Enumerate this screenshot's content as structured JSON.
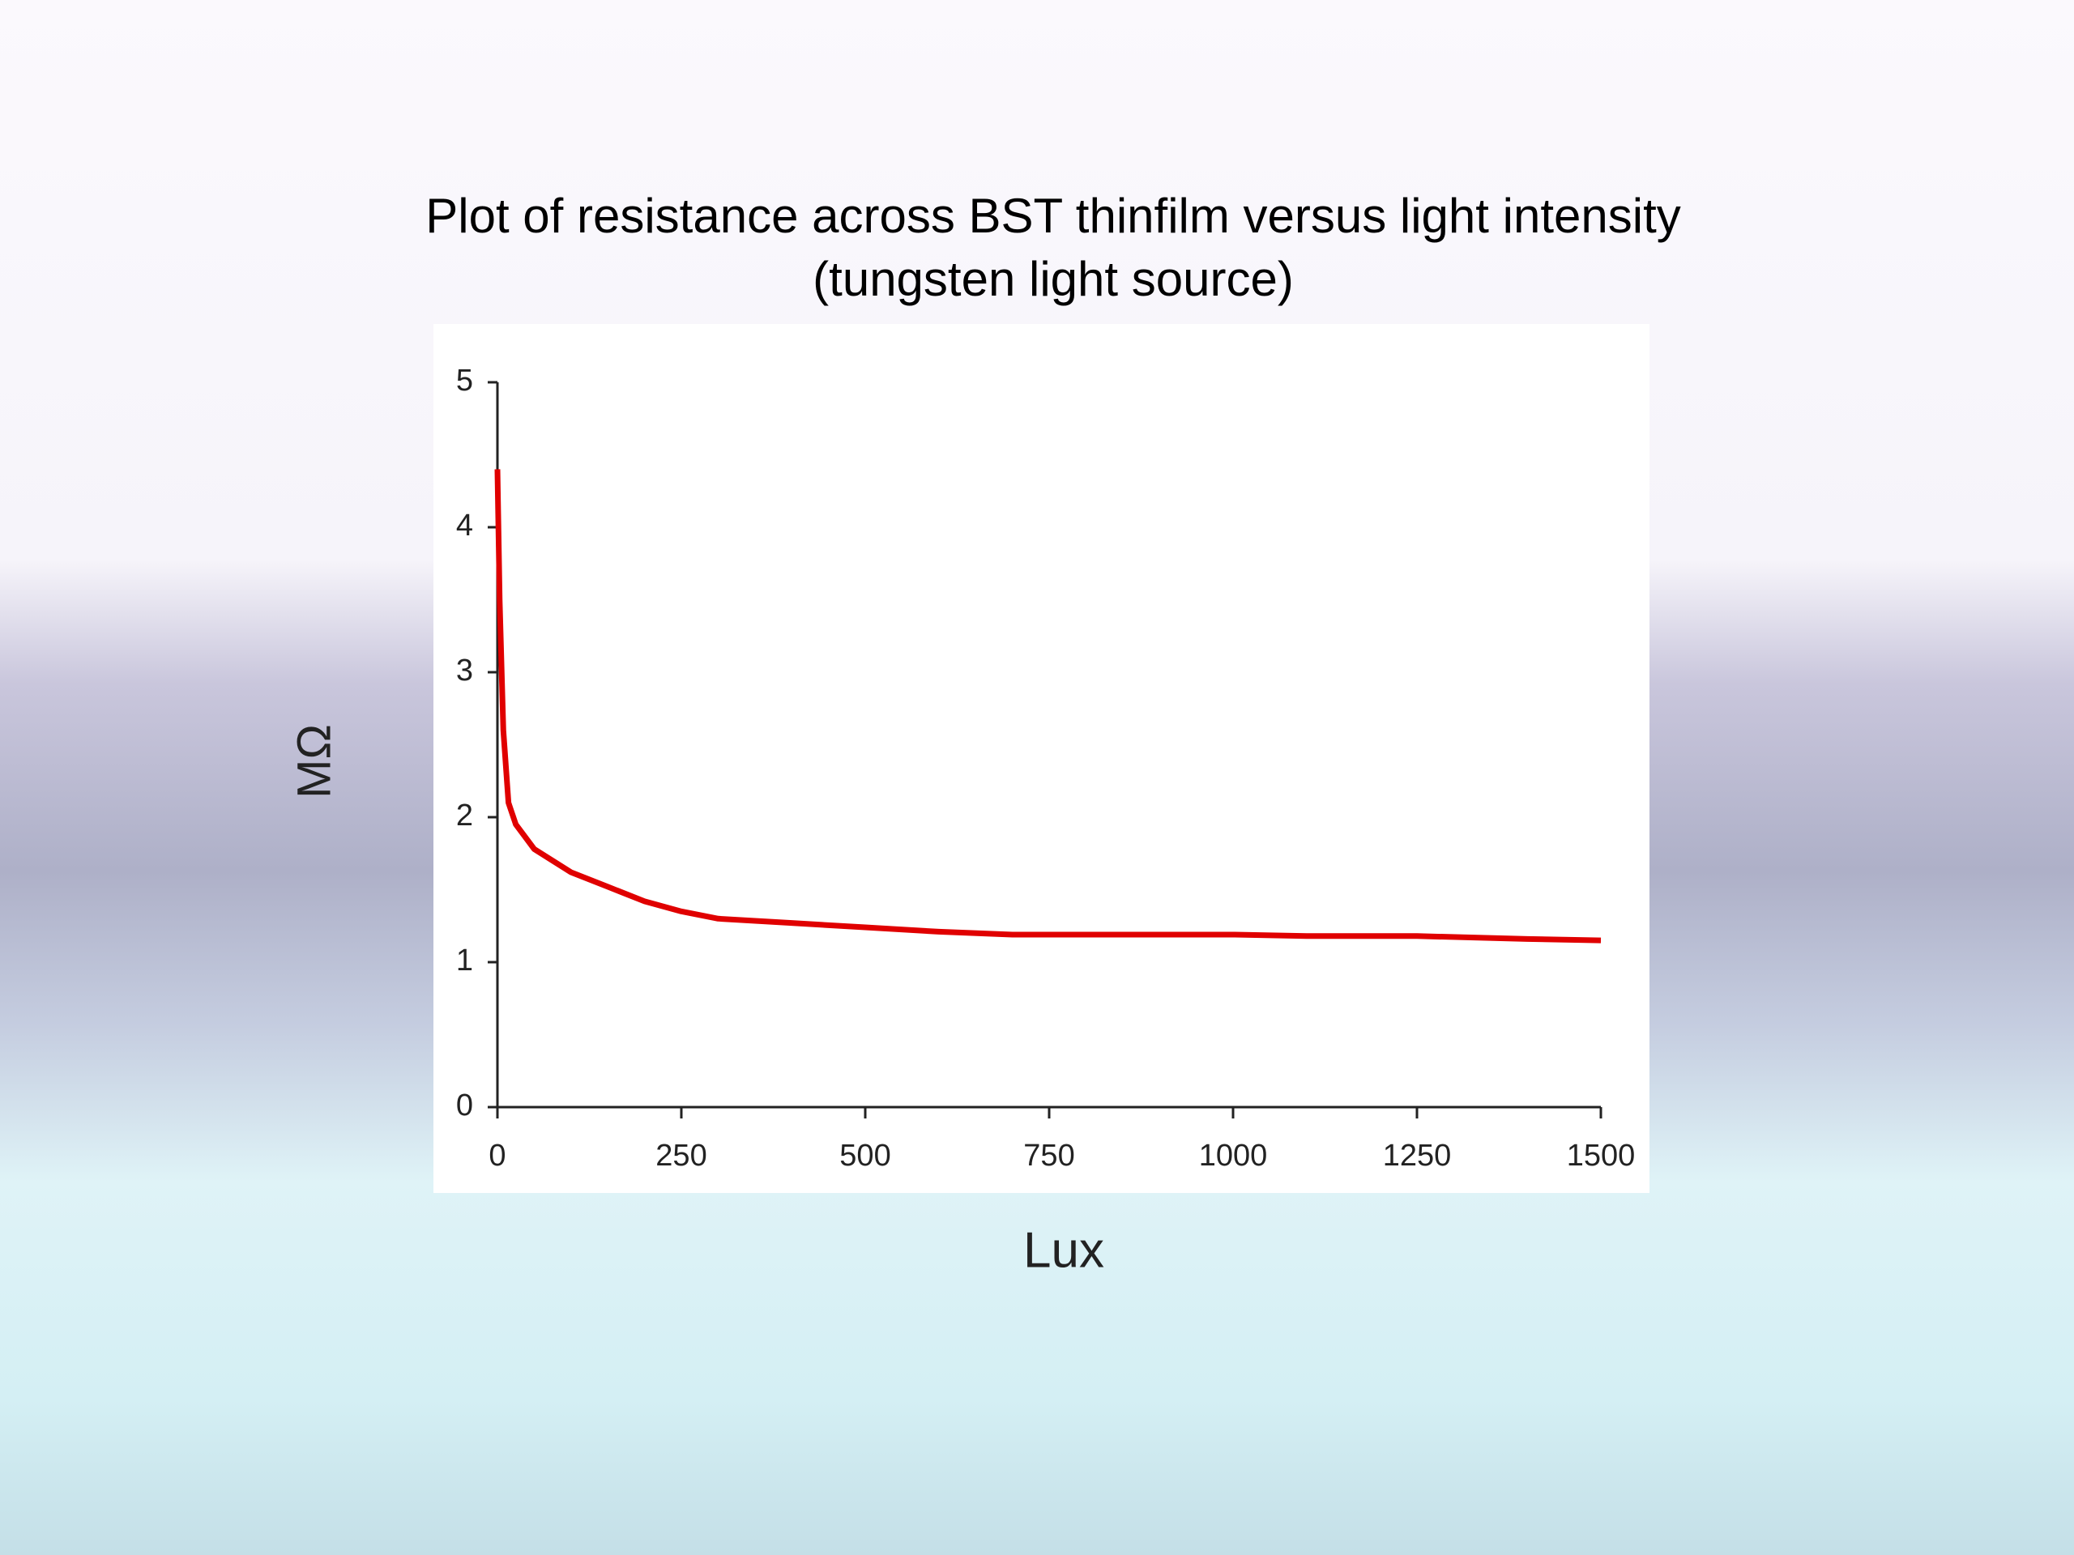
{
  "chart_data": {
    "type": "line",
    "title": "Plot of resistance across BST thinfilm versus light intensity\n(tungsten light source)",
    "x_label": "Lux",
    "y_label": "MΩ",
    "x": [
      0,
      3,
      8,
      15,
      25,
      50,
      100,
      150,
      200,
      250,
      300,
      400,
      500,
      600,
      700,
      800,
      1000,
      1100,
      1250,
      1400,
      1500
    ],
    "series": [
      {
        "name": "Resistance",
        "color": "#e00000",
        "values": [
          4.4,
          3.5,
          2.6,
          2.1,
          1.95,
          1.78,
          1.62,
          1.52,
          1.42,
          1.35,
          1.3,
          1.27,
          1.24,
          1.21,
          1.19,
          1.19,
          1.19,
          1.18,
          1.18,
          1.16,
          1.15
        ]
      }
    ],
    "xlim": [
      0,
      1500
    ],
    "xticks": [
      0,
      250,
      500,
      750,
      1000,
      1250,
      1500
    ],
    "ylim": [
      0,
      5
    ],
    "yticks": [
      0,
      1,
      2,
      3,
      4,
      5
    ]
  }
}
